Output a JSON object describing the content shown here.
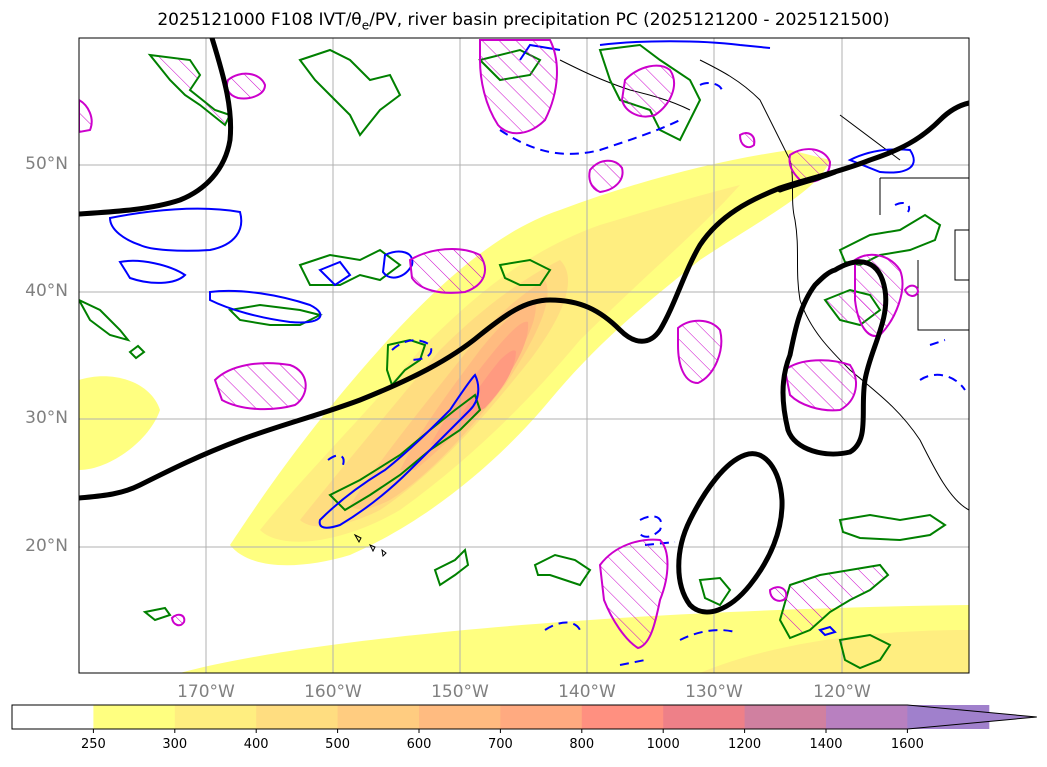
{
  "title": "2025121000 F108 IVT/θ",
  "title_sub": "e",
  "title_rest": "/PV, river basin precipitation PC (2025121200 - 2025121500)",
  "map": {
    "lat_labels": [
      "50°N",
      "40°N",
      "30°N",
      "20°N"
    ],
    "lon_labels": [
      "170°W",
      "160°W",
      "150°W",
      "140°W",
      "130°W",
      "120°W"
    ]
  },
  "colorbar": {
    "ticks": [
      "250",
      "300",
      "400",
      "500",
      "600",
      "700",
      "800",
      "1000",
      "1200",
      "1400",
      "1600"
    ],
    "colors": [
      "#ffffff",
      "#ffff80",
      "#ffee80",
      "#ffdd80",
      "#ffcc80",
      "#ffbb80",
      "#ffaa80",
      "#ff9080",
      "#ee8088",
      "#d080a0",
      "#b880c0",
      "#a080cc"
    ]
  },
  "colors": {
    "theta_contour": "#000000",
    "pv_contour": "#0000ff",
    "precip_contour": "#008000",
    "hatch_contour": "#cc00cc"
  }
}
